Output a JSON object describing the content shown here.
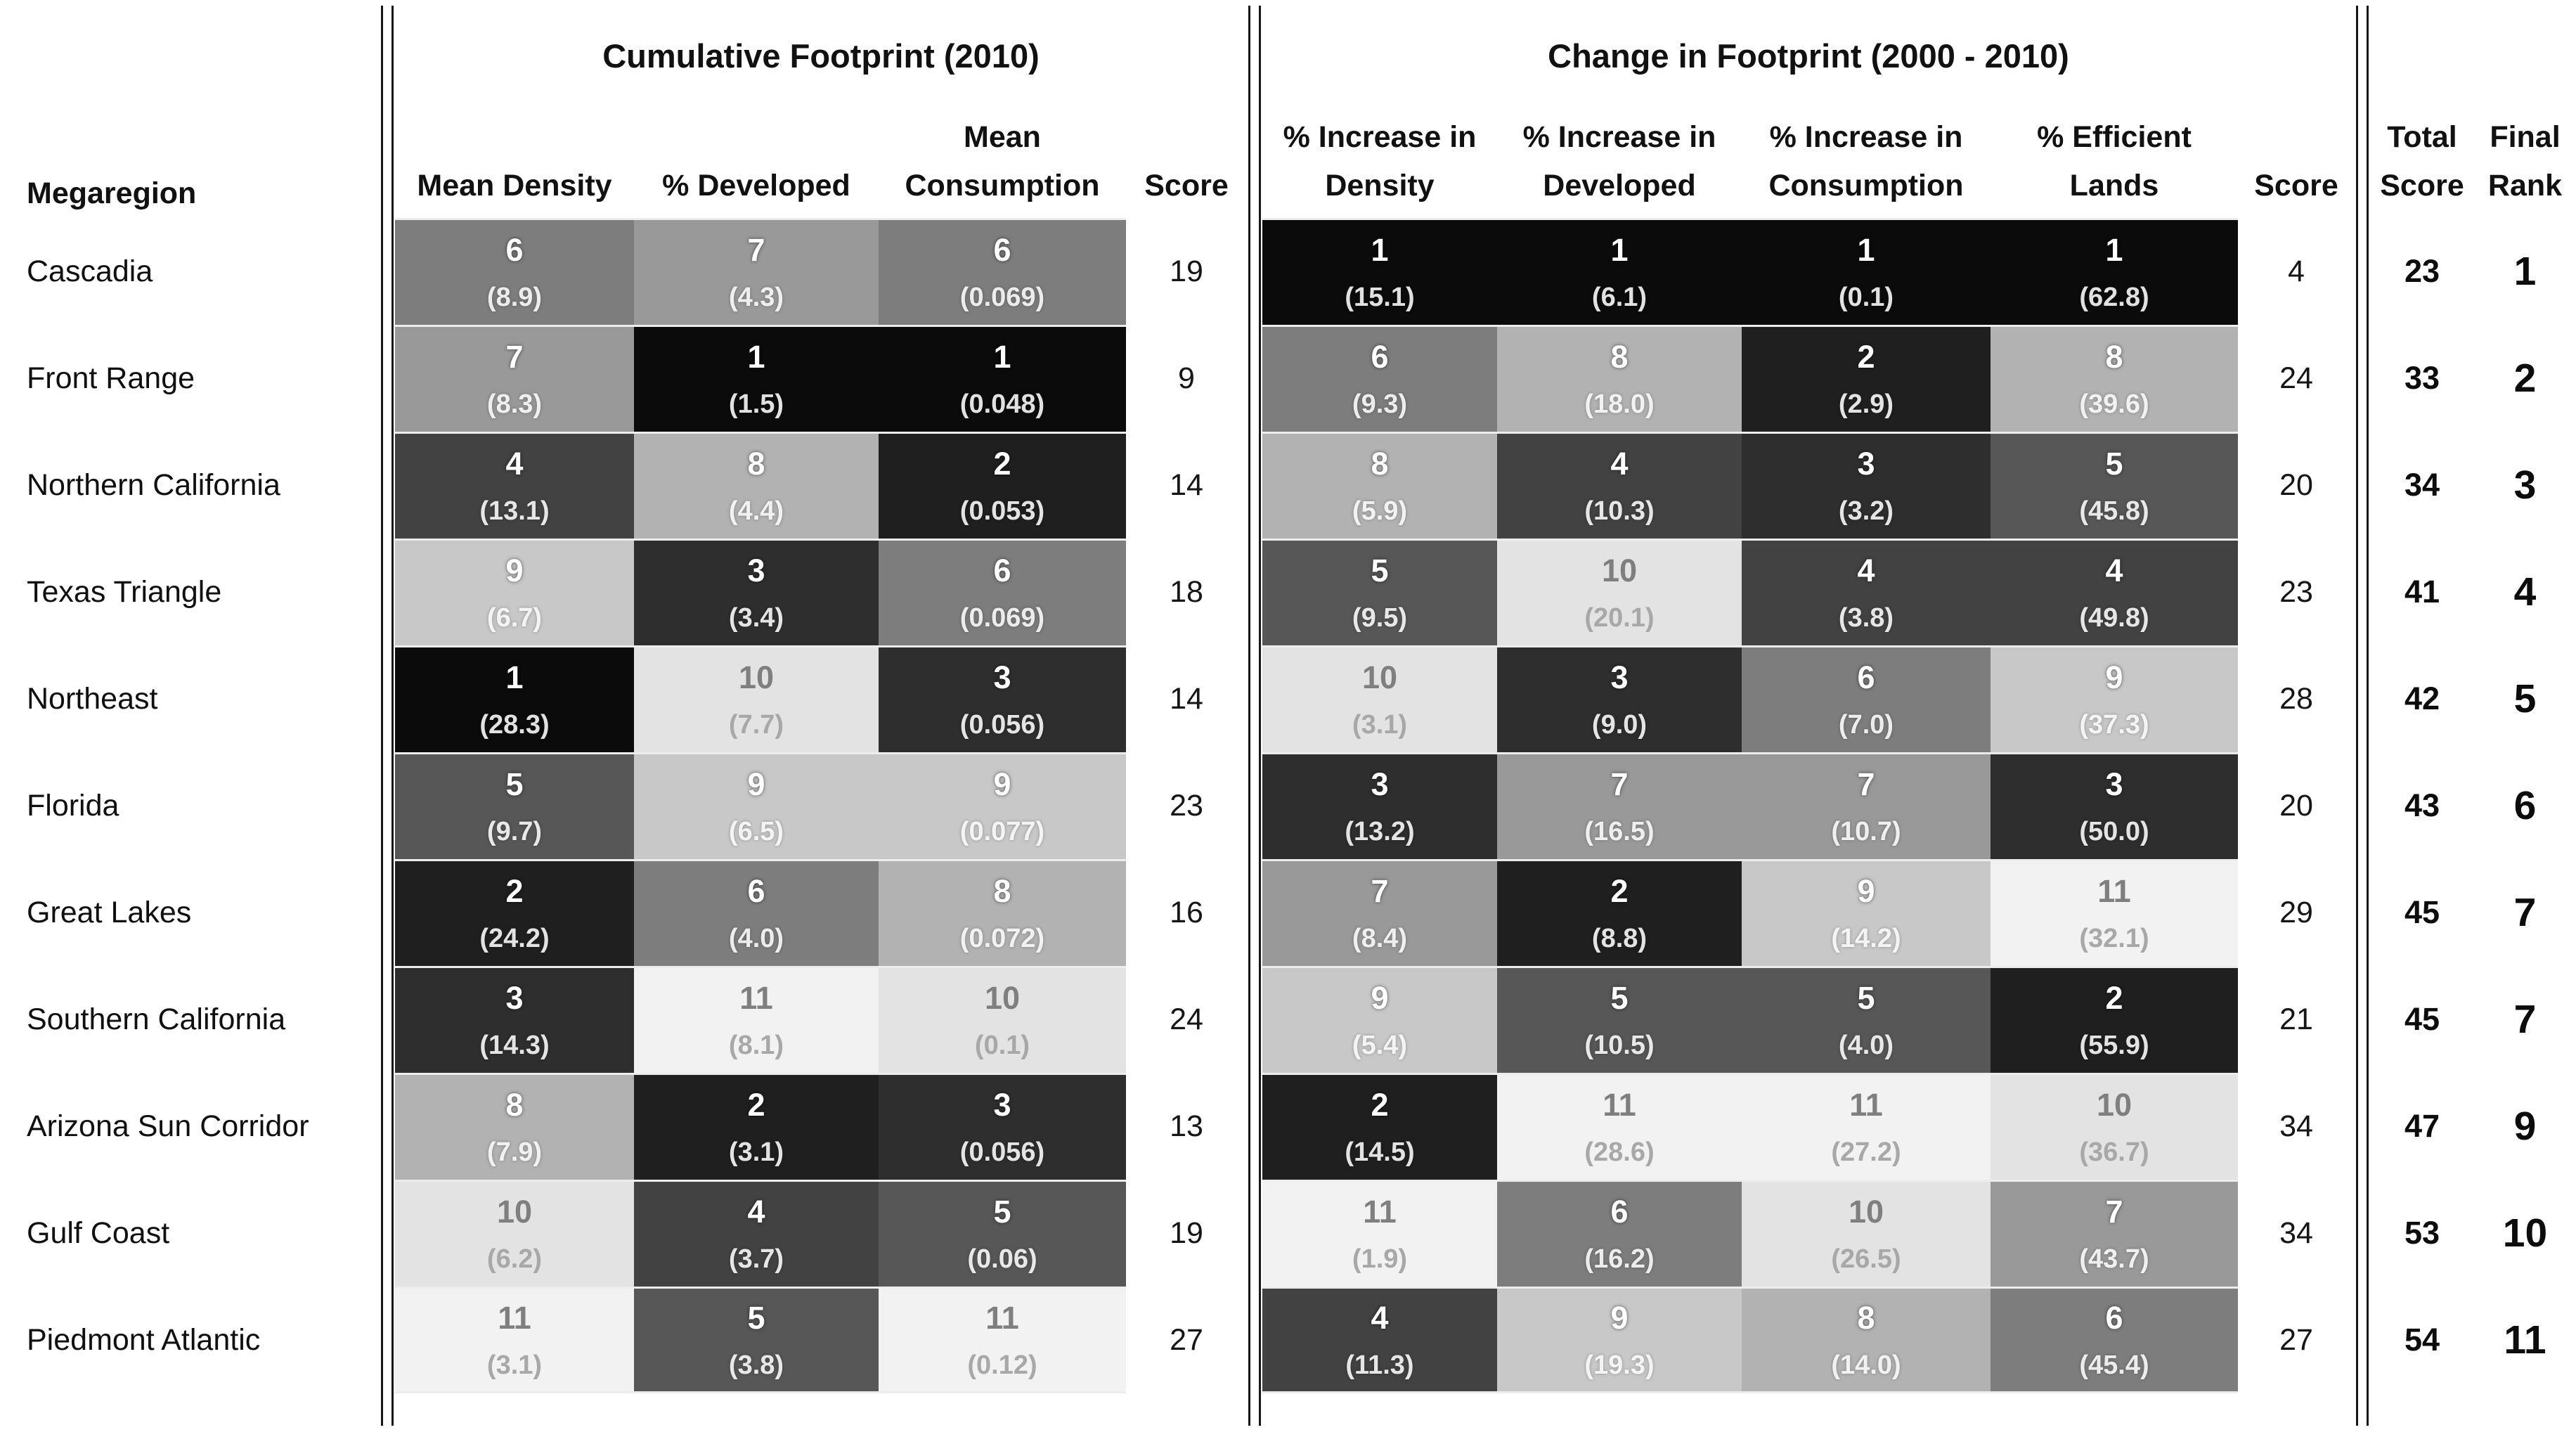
{
  "style": {
    "cell_shades": {
      "1": "#0b0b0b",
      "2": "#1f1f1f",
      "3": "#2e2e2e",
      "4": "#424242",
      "5": "#575757",
      "6": "#7d7d7d",
      "7": "#999999",
      "8": "#b2b2b2",
      "9": "#c8c8c8",
      "10": "#e3e3e3",
      "11": "#f2f2f2"
    },
    "dark_cell_text": "#ffffff",
    "light_cell_number_text": "#7f7f7f",
    "light_cell_value_text": "#a8a8a8",
    "light_cell_rank_threshold": 10,
    "separator_line_color": "#161616"
  },
  "chart_data": {
    "type": "table",
    "header": {
      "megaregion": "Megaregion",
      "section1": {
        "title": "Cumulative Footprint (2010)",
        "cols": [
          {
            "l1": "",
            "l2": "Mean Density"
          },
          {
            "l1": "",
            "l2": "% Developed"
          },
          {
            "l1": "Mean",
            "l2": "Consumption"
          },
          {
            "l1": "",
            "l2": "Score"
          }
        ]
      },
      "section2": {
        "title": "Change in Footprint (2000 - 2010)",
        "cols": [
          {
            "l1": "% Increase in",
            "l2": "Density"
          },
          {
            "l1": "% Increase in",
            "l2": "Developed"
          },
          {
            "l1": "% Increase in",
            "l2": "Consumption"
          },
          {
            "l1": "% Efficient",
            "l2": "Lands"
          },
          {
            "l1": "",
            "l2": "Score"
          }
        ]
      },
      "total": {
        "l1": "Total",
        "l2": "Score"
      },
      "rank": {
        "l1": "Final",
        "l2": "Rank"
      }
    },
    "rows": [
      {
        "megaregion": "Cascadia",
        "s1": [
          {
            "rank": 6,
            "value": "(8.9)"
          },
          {
            "rank": 7,
            "value": "(4.3)"
          },
          {
            "rank": 6,
            "value": "(0.069)"
          }
        ],
        "s1_score": 19,
        "s2": [
          {
            "rank": 1,
            "value": "(15.1)"
          },
          {
            "rank": 1,
            "value": "(6.1)"
          },
          {
            "rank": 1,
            "value": "(0.1)"
          },
          {
            "rank": 1,
            "value": "(62.8)"
          }
        ],
        "s2_score": 4,
        "total_score": 23,
        "final_rank": 1
      },
      {
        "megaregion": "Front Range",
        "s1": [
          {
            "rank": 7,
            "value": "(8.3)"
          },
          {
            "rank": 1,
            "value": "(1.5)"
          },
          {
            "rank": 1,
            "value": "(0.048)"
          }
        ],
        "s1_score": 9,
        "s2": [
          {
            "rank": 6,
            "value": "(9.3)"
          },
          {
            "rank": 8,
            "value": "(18.0)"
          },
          {
            "rank": 2,
            "value": "(2.9)"
          },
          {
            "rank": 8,
            "value": "(39.6)"
          }
        ],
        "s2_score": 24,
        "total_score": 33,
        "final_rank": 2
      },
      {
        "megaregion": "Northern California",
        "s1": [
          {
            "rank": 4,
            "value": "(13.1)"
          },
          {
            "rank": 8,
            "value": "(4.4)"
          },
          {
            "rank": 2,
            "value": "(0.053)"
          }
        ],
        "s1_score": 14,
        "s2": [
          {
            "rank": 8,
            "value": "(5.9)"
          },
          {
            "rank": 4,
            "value": "(10.3)"
          },
          {
            "rank": 3,
            "value": "(3.2)"
          },
          {
            "rank": 5,
            "value": "(45.8)"
          }
        ],
        "s2_score": 20,
        "total_score": 34,
        "final_rank": 3
      },
      {
        "megaregion": "Texas Triangle",
        "s1": [
          {
            "rank": 9,
            "value": "(6.7)"
          },
          {
            "rank": 3,
            "value": "(3.4)"
          },
          {
            "rank": 6,
            "value": "(0.069)"
          }
        ],
        "s1_score": 18,
        "s2": [
          {
            "rank": 5,
            "value": "(9.5)"
          },
          {
            "rank": 10,
            "value": "(20.1)"
          },
          {
            "rank": 4,
            "value": "(3.8)"
          },
          {
            "rank": 4,
            "value": "(49.8)"
          }
        ],
        "s2_score": 23,
        "total_score": 41,
        "final_rank": 4
      },
      {
        "megaregion": "Northeast",
        "s1": [
          {
            "rank": 1,
            "value": "(28.3)"
          },
          {
            "rank": 10,
            "value": "(7.7)"
          },
          {
            "rank": 3,
            "value": "(0.056)"
          }
        ],
        "s1_score": 14,
        "s2": [
          {
            "rank": 10,
            "value": "(3.1)"
          },
          {
            "rank": 3,
            "value": "(9.0)"
          },
          {
            "rank": 6,
            "value": "(7.0)"
          },
          {
            "rank": 9,
            "value": "(37.3)"
          }
        ],
        "s2_score": 28,
        "total_score": 42,
        "final_rank": 5
      },
      {
        "megaregion": "Florida",
        "s1": [
          {
            "rank": 5,
            "value": "(9.7)"
          },
          {
            "rank": 9,
            "value": "(6.5)"
          },
          {
            "rank": 9,
            "value": "(0.077)"
          }
        ],
        "s1_score": 23,
        "s2": [
          {
            "rank": 3,
            "value": "(13.2)"
          },
          {
            "rank": 7,
            "value": "(16.5)"
          },
          {
            "rank": 7,
            "value": "(10.7)"
          },
          {
            "rank": 3,
            "value": "(50.0)"
          }
        ],
        "s2_score": 20,
        "total_score": 43,
        "final_rank": 6
      },
      {
        "megaregion": "Great Lakes",
        "s1": [
          {
            "rank": 2,
            "value": "(24.2)"
          },
          {
            "rank": 6,
            "value": "(4.0)"
          },
          {
            "rank": 8,
            "value": "(0.072)"
          }
        ],
        "s1_score": 16,
        "s2": [
          {
            "rank": 7,
            "value": "(8.4)"
          },
          {
            "rank": 2,
            "value": "(8.8)"
          },
          {
            "rank": 9,
            "value": "(14.2)"
          },
          {
            "rank": 11,
            "value": "(32.1)"
          }
        ],
        "s2_score": 29,
        "total_score": 45,
        "final_rank": 7
      },
      {
        "megaregion": "Southern California",
        "s1": [
          {
            "rank": 3,
            "value": "(14.3)"
          },
          {
            "rank": 11,
            "value": "(8.1)"
          },
          {
            "rank": 10,
            "value": "(0.1)"
          }
        ],
        "s1_score": 24,
        "s2": [
          {
            "rank": 9,
            "value": "(5.4)"
          },
          {
            "rank": 5,
            "value": "(10.5)"
          },
          {
            "rank": 5,
            "value": "(4.0)"
          },
          {
            "rank": 2,
            "value": "(55.9)"
          }
        ],
        "s2_score": 21,
        "total_score": 45,
        "final_rank": 7
      },
      {
        "megaregion": "Arizona Sun Corridor",
        "s1": [
          {
            "rank": 8,
            "value": "(7.9)"
          },
          {
            "rank": 2,
            "value": "(3.1)"
          },
          {
            "rank": 3,
            "value": "(0.056)"
          }
        ],
        "s1_score": 13,
        "s2": [
          {
            "rank": 2,
            "value": "(14.5)"
          },
          {
            "rank": 11,
            "value": "(28.6)"
          },
          {
            "rank": 11,
            "value": "(27.2)"
          },
          {
            "rank": 10,
            "value": "(36.7)"
          }
        ],
        "s2_score": 34,
        "total_score": 47,
        "final_rank": 9
      },
      {
        "megaregion": "Gulf Coast",
        "s1": [
          {
            "rank": 10,
            "value": "(6.2)"
          },
          {
            "rank": 4,
            "value": "(3.7)"
          },
          {
            "rank": 5,
            "value": "(0.06)"
          }
        ],
        "s1_score": 19,
        "s2": [
          {
            "rank": 11,
            "value": "(1.9)"
          },
          {
            "rank": 6,
            "value": "(16.2)"
          },
          {
            "rank": 10,
            "value": "(26.5)"
          },
          {
            "rank": 7,
            "value": "(43.7)"
          }
        ],
        "s2_score": 34,
        "total_score": 53,
        "final_rank": 10
      },
      {
        "megaregion": "Piedmont Atlantic",
        "s1": [
          {
            "rank": 11,
            "value": "(3.1)"
          },
          {
            "rank": 5,
            "value": "(3.8)"
          },
          {
            "rank": 11,
            "value": "(0.12)"
          }
        ],
        "s1_score": 27,
        "s2": [
          {
            "rank": 4,
            "value": "(11.3)"
          },
          {
            "rank": 9,
            "value": "(19.3)"
          },
          {
            "rank": 8,
            "value": "(14.0)"
          },
          {
            "rank": 6,
            "value": "(45.4)"
          }
        ],
        "s2_score": 27,
        "total_score": 54,
        "final_rank": 11
      }
    ]
  }
}
